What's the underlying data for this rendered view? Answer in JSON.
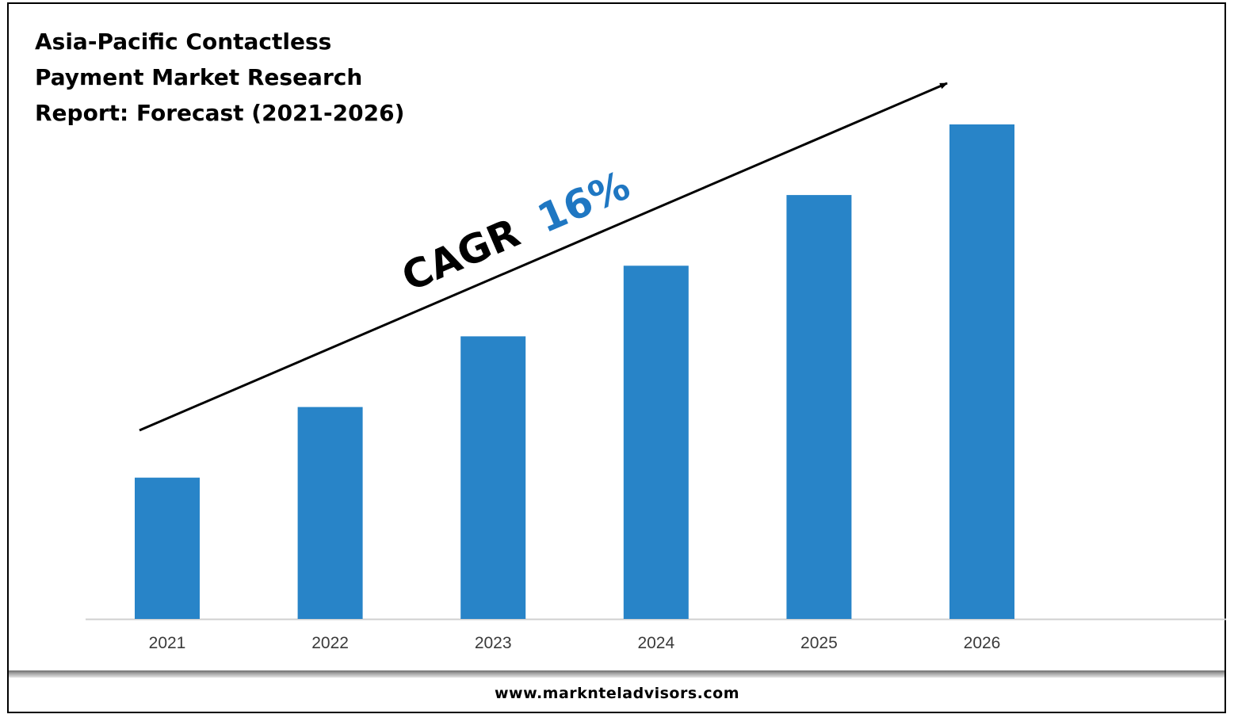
{
  "title_lines": [
    "Asia-Pacific Contactless",
    "Payment Market Research",
    "Report: Forecast (2021-2026)"
  ],
  "annotation": {
    "label": "CAGR",
    "value": "16%",
    "label_color": "#000000",
    "value_color": "#1f77c2"
  },
  "footer": {
    "url": "www.marknteladvisors.com"
  },
  "colors": {
    "bar": "#2884c8",
    "axis": "#d0d0d0",
    "arrow": "#000000"
  },
  "chart_data": {
    "type": "bar",
    "title": "Asia-Pacific Contactless Payment Market Research Report: Forecast (2021-2026)",
    "categories": [
      "2021",
      "2022",
      "2023",
      "2024",
      "2025",
      "2026"
    ],
    "values": [
      100,
      150,
      200,
      250,
      300,
      350
    ],
    "value_unit": "relative (no axis values shown)",
    "xlabel": "",
    "ylabel": "",
    "ylim": [
      0,
      350
    ],
    "grid": false,
    "legend": "none",
    "annotations": [
      "CAGR 16%"
    ]
  }
}
